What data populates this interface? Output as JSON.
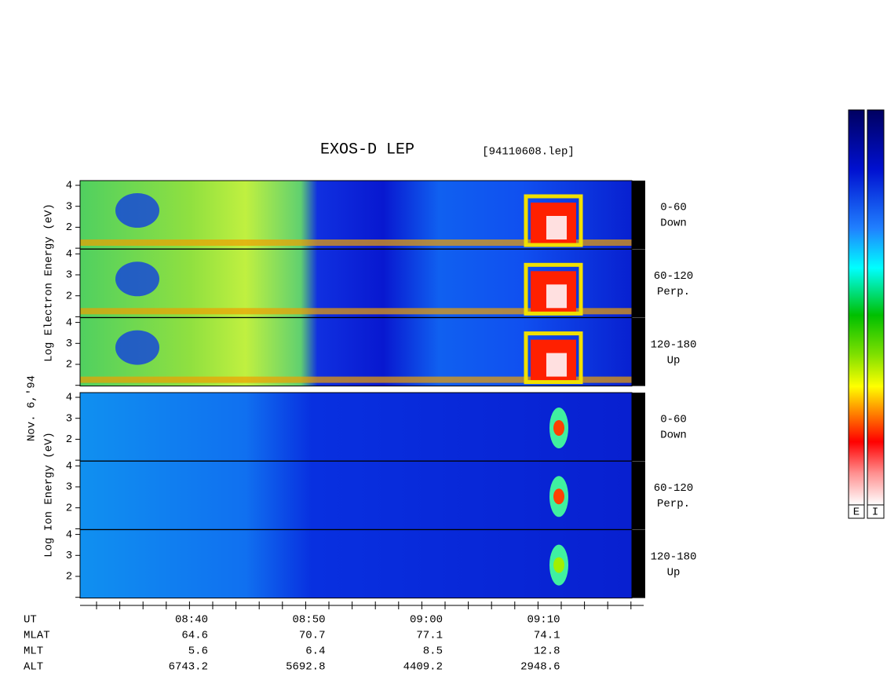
{
  "header": {
    "title": "EXOS-D LEP",
    "file": "[94110608.lep]"
  },
  "date": "Nov. 6,'94",
  "electron": {
    "axis_label": "Log  Electron  Energy (eV)",
    "panels": [
      {
        "pitch": "0-60",
        "direction": "Down"
      },
      {
        "pitch": "60-120",
        "direction": "Perp."
      },
      {
        "pitch": "120-180",
        "direction": "Up"
      }
    ]
  },
  "ion": {
    "axis_label": "Log  Ion  Energy (eV)",
    "panels": [
      {
        "pitch": "0-60",
        "direction": "Down"
      },
      {
        "pitch": "60-120",
        "direction": "Perp."
      },
      {
        "pitch": "120-180",
        "direction": "Up"
      }
    ]
  },
  "energy_ticks": [
    "2",
    "3",
    "4"
  ],
  "ephemeris": {
    "row_labels": [
      "UT",
      "MLAT",
      "MLT",
      "ALT"
    ],
    "columns": [
      [
        "08:40",
        "64.6",
        "5.6",
        "6743.2"
      ],
      [
        "08:50",
        "70.7",
        "6.4",
        "5692.8"
      ],
      [
        "09:00",
        "77.1",
        "8.5",
        "4409.2"
      ],
      [
        "09:10",
        "74.1",
        "12.8",
        "2948.6"
      ]
    ]
  },
  "colorbar_labels": [
    "E",
    "I"
  ]
}
